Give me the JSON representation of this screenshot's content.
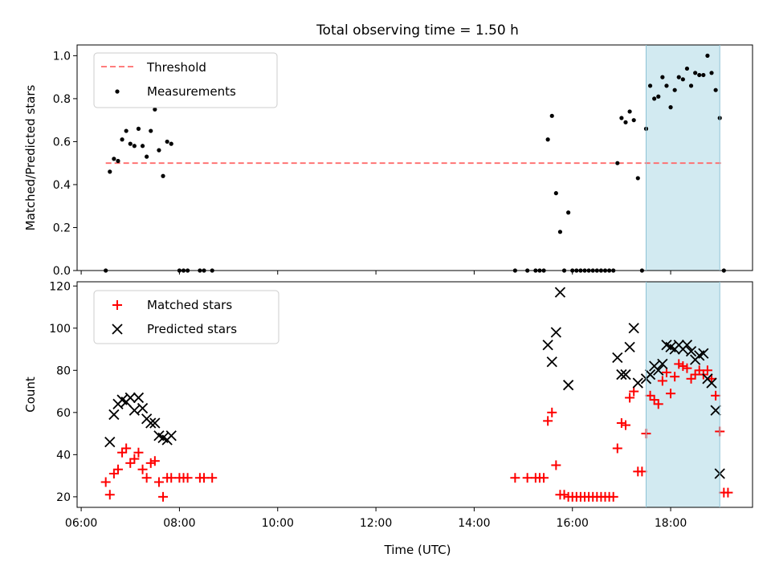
{
  "chart_data": {
    "type": "scatter",
    "title": "Total observing time = 1.50 h",
    "xlabel": "Time (UTC)",
    "x_ticks": [
      "06:00",
      "08:00",
      "10:00",
      "12:00",
      "14:00",
      "16:00",
      "18:00"
    ],
    "xlim": [
      "05:55",
      "19:40"
    ],
    "highlight_span": {
      "start": "17:30",
      "end": "19:00",
      "color": "#add8e6"
    },
    "panels": [
      {
        "ylabel": "Matched/Predicted stars",
        "ylim": [
          0,
          1.05
        ],
        "y_ticks": [
          "0.0",
          "0.2",
          "0.4",
          "0.6",
          "0.8",
          "1.0"
        ],
        "legend": {
          "placement": "upper left"
        },
        "threshold": {
          "name": "Threshold",
          "value": 0.5,
          "x_start": "06:30",
          "x_end": "19:05",
          "color": "#ff6b6b",
          "style": "dashed"
        },
        "series": [
          {
            "name": "Measurements",
            "marker": "dot",
            "color": "#000000",
            "points": [
              [
                "06:30",
                0.0
              ],
              [
                "06:35",
                0.46
              ],
              [
                "06:40",
                0.52
              ],
              [
                "06:45",
                0.51
              ],
              [
                "06:50",
                0.61
              ],
              [
                "06:55",
                0.65
              ],
              [
                "07:00",
                0.59
              ],
              [
                "07:05",
                0.58
              ],
              [
                "07:10",
                0.66
              ],
              [
                "07:15",
                0.58
              ],
              [
                "07:20",
                0.53
              ],
              [
                "07:25",
                0.65
              ],
              [
                "07:30",
                0.75
              ],
              [
                "07:35",
                0.56
              ],
              [
                "07:40",
                0.44
              ],
              [
                "07:45",
                0.6
              ],
              [
                "07:50",
                0.59
              ],
              [
                "08:00",
                0.0
              ],
              [
                "08:05",
                0.0
              ],
              [
                "08:10",
                0.0
              ],
              [
                "08:25",
                0.0
              ],
              [
                "08:30",
                0.0
              ],
              [
                "08:40",
                0.0
              ],
              [
                "14:50",
                0.0
              ],
              [
                "15:05",
                0.0
              ],
              [
                "15:15",
                0.0
              ],
              [
                "15:20",
                0.0
              ],
              [
                "15:25",
                0.0
              ],
              [
                "15:30",
                0.61
              ],
              [
                "15:35",
                0.72
              ],
              [
                "15:40",
                0.36
              ],
              [
                "15:45",
                0.18
              ],
              [
                "15:50",
                0.0
              ],
              [
                "15:55",
                0.27
              ],
              [
                "16:00",
                0.0
              ],
              [
                "16:05",
                0.0
              ],
              [
                "16:10",
                0.0
              ],
              [
                "16:15",
                0.0
              ],
              [
                "16:20",
                0.0
              ],
              [
                "16:25",
                0.0
              ],
              [
                "16:30",
                0.0
              ],
              [
                "16:35",
                0.0
              ],
              [
                "16:40",
                0.0
              ],
              [
                "16:45",
                0.0
              ],
              [
                "16:50",
                0.0
              ],
              [
                "16:55",
                0.5
              ],
              [
                "17:00",
                0.71
              ],
              [
                "17:05",
                0.69
              ],
              [
                "17:10",
                0.74
              ],
              [
                "17:15",
                0.7
              ],
              [
                "17:20",
                0.43
              ],
              [
                "17:25",
                0.0
              ],
              [
                "17:30",
                0.66
              ],
              [
                "17:35",
                0.86
              ],
              [
                "17:40",
                0.8
              ],
              [
                "17:45",
                0.81
              ],
              [
                "17:50",
                0.9
              ],
              [
                "17:55",
                0.86
              ],
              [
                "18:00",
                0.76
              ],
              [
                "18:05",
                0.84
              ],
              [
                "18:10",
                0.9
              ],
              [
                "18:15",
                0.89
              ],
              [
                "18:20",
                0.94
              ],
              [
                "18:25",
                0.86
              ],
              [
                "18:30",
                0.92
              ],
              [
                "18:35",
                0.91
              ],
              [
                "18:40",
                0.91
              ],
              [
                "18:45",
                1.0
              ],
              [
                "18:50",
                0.92
              ],
              [
                "18:55",
                0.84
              ],
              [
                "19:00",
                0.71
              ],
              [
                "19:05",
                0.0
              ]
            ]
          }
        ]
      },
      {
        "ylabel": "Count",
        "ylim": [
          15,
          122
        ],
        "y_ticks": [
          "20",
          "40",
          "60",
          "80",
          "100",
          "120"
        ],
        "legend": {
          "placement": "upper left"
        },
        "series": [
          {
            "name": "Matched stars",
            "marker": "plus",
            "color": "#ff0000",
            "points": [
              [
                "06:30",
                27
              ],
              [
                "06:35",
                21
              ],
              [
                "06:40",
                31
              ],
              [
                "06:45",
                33
              ],
              [
                "06:50",
                41
              ],
              [
                "06:55",
                43
              ],
              [
                "07:00",
                36
              ],
              [
                "07:05",
                38
              ],
              [
                "07:10",
                41
              ],
              [
                "07:15",
                33
              ],
              [
                "07:20",
                29
              ],
              [
                "07:25",
                36
              ],
              [
                "07:30",
                37
              ],
              [
                "07:35",
                27
              ],
              [
                "07:40",
                20
              ],
              [
                "07:45",
                29
              ],
              [
                "07:50",
                29
              ],
              [
                "08:00",
                29
              ],
              [
                "08:05",
                29
              ],
              [
                "08:10",
                29
              ],
              [
                "08:25",
                29
              ],
              [
                "08:30",
                29
              ],
              [
                "08:40",
                29
              ],
              [
                "14:50",
                29
              ],
              [
                "15:05",
                29
              ],
              [
                "15:15",
                29
              ],
              [
                "15:20",
                29
              ],
              [
                "15:25",
                29
              ],
              [
                "15:30",
                56
              ],
              [
                "15:35",
                60
              ],
              [
                "15:40",
                35
              ],
              [
                "15:45",
                21
              ],
              [
                "15:50",
                21
              ],
              [
                "15:55",
                20
              ],
              [
                "16:00",
                20
              ],
              [
                "16:05",
                20
              ],
              [
                "16:10",
                20
              ],
              [
                "16:15",
                20
              ],
              [
                "16:20",
                20
              ],
              [
                "16:25",
                20
              ],
              [
                "16:30",
                20
              ],
              [
                "16:35",
                20
              ],
              [
                "16:40",
                20
              ],
              [
                "16:45",
                20
              ],
              [
                "16:50",
                20
              ],
              [
                "16:55",
                43
              ],
              [
                "17:00",
                55
              ],
              [
                "17:05",
                54
              ],
              [
                "17:10",
                67
              ],
              [
                "17:15",
                70
              ],
              [
                "17:20",
                32
              ],
              [
                "17:25",
                32
              ],
              [
                "17:30",
                50
              ],
              [
                "17:35",
                68
              ],
              [
                "17:40",
                66
              ],
              [
                "17:45",
                64
              ],
              [
                "17:50",
                75
              ],
              [
                "17:55",
                79
              ],
              [
                "18:00",
                69
              ],
              [
                "18:05",
                77
              ],
              [
                "18:10",
                83
              ],
              [
                "18:15",
                82
              ],
              [
                "18:20",
                81
              ],
              [
                "18:25",
                76
              ],
              [
                "18:30",
                78
              ],
              [
                "18:35",
                80
              ],
              [
                "18:40",
                78
              ],
              [
                "18:45",
                80
              ],
              [
                "18:50",
                76
              ],
              [
                "18:55",
                68
              ],
              [
                "19:00",
                51
              ],
              [
                "19:05",
                22
              ],
              [
                "19:10",
                22
              ]
            ]
          },
          {
            "name": "Predicted stars",
            "marker": "x",
            "color": "#000000",
            "points": [
              [
                "06:35",
                46
              ],
              [
                "06:40",
                59
              ],
              [
                "06:45",
                64
              ],
              [
                "06:50",
                66
              ],
              [
                "06:55",
                65
              ],
              [
                "07:00",
                67
              ],
              [
                "07:05",
                61
              ],
              [
                "07:10",
                67
              ],
              [
                "07:15",
                62
              ],
              [
                "07:20",
                57
              ],
              [
                "07:25",
                55
              ],
              [
                "07:30",
                55
              ],
              [
                "07:35",
                49
              ],
              [
                "07:40",
                48
              ],
              [
                "07:45",
                47
              ],
              [
                "07:50",
                49
              ],
              [
                "15:30",
                92
              ],
              [
                "15:35",
                84
              ],
              [
                "15:40",
                98
              ],
              [
                "15:45",
                117
              ],
              [
                "15:55",
                73
              ],
              [
                "16:55",
                86
              ],
              [
                "17:00",
                78
              ],
              [
                "17:05",
                78
              ],
              [
                "17:10",
                91
              ],
              [
                "17:15",
                100
              ],
              [
                "17:20",
                74
              ],
              [
                "17:30",
                76
              ],
              [
                "17:35",
                78
              ],
              [
                "17:40",
                82
              ],
              [
                "17:45",
                80
              ],
              [
                "17:50",
                83
              ],
              [
                "17:55",
                92
              ],
              [
                "18:00",
                91
              ],
              [
                "18:05",
                90
              ],
              [
                "18:10",
                92
              ],
              [
                "18:15",
                90
              ],
              [
                "18:20",
                92
              ],
              [
                "18:25",
                89
              ],
              [
                "18:30",
                85
              ],
              [
                "18:35",
                87
              ],
              [
                "18:40",
                88
              ],
              [
                "18:45",
                76
              ],
              [
                "18:50",
                74
              ],
              [
                "18:55",
                61
              ],
              [
                "19:00",
                31
              ]
            ]
          }
        ]
      }
    ]
  }
}
